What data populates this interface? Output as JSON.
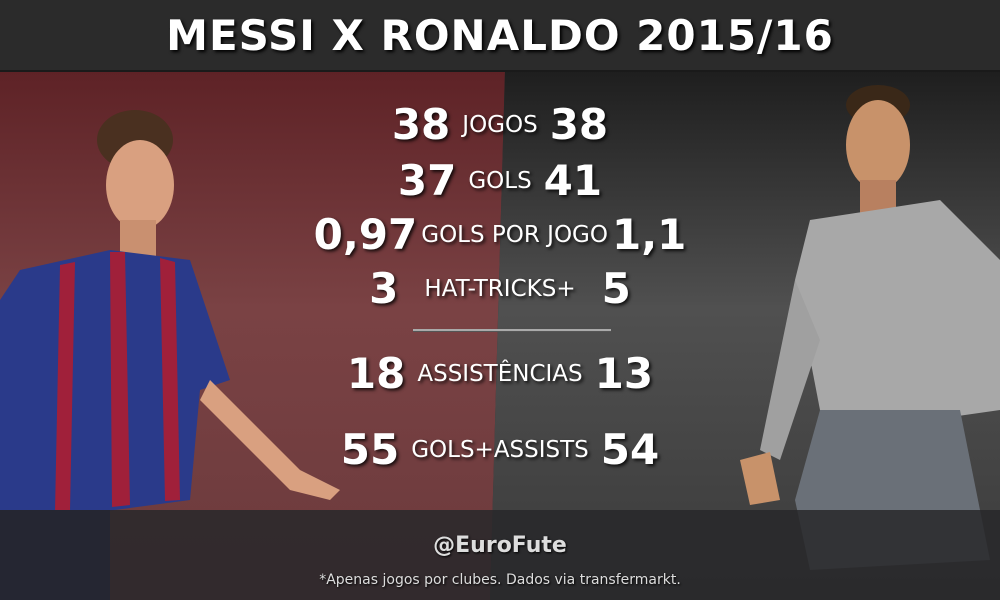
{
  "title": "MESSI X RONALDO 2015/16",
  "stats": [
    {
      "left": "38",
      "label": "JOGOS",
      "right": "38"
    },
    {
      "left": "37",
      "label": "GOLS",
      "right": "41"
    },
    {
      "left": "0,97",
      "label": "GOLS POR JOGO",
      "right": "1,1"
    },
    {
      "left": "3",
      "label": "HAT-TRICKS+",
      "right": "5"
    },
    {
      "left": "18",
      "label": "ASSISTÊNCIAS",
      "right": "13"
    },
    {
      "left": "55",
      "label": "GOLS+ASSISTS",
      "right": "54"
    }
  ],
  "footer": {
    "handle": "@EuroFute",
    "note": "*Apenas jogos por clubes. Dados via transfermarkt."
  },
  "colors": {
    "left_bg": "#6b3033",
    "right_bg": "#3a3a3a",
    "title_bar": "#2b2b2b"
  }
}
